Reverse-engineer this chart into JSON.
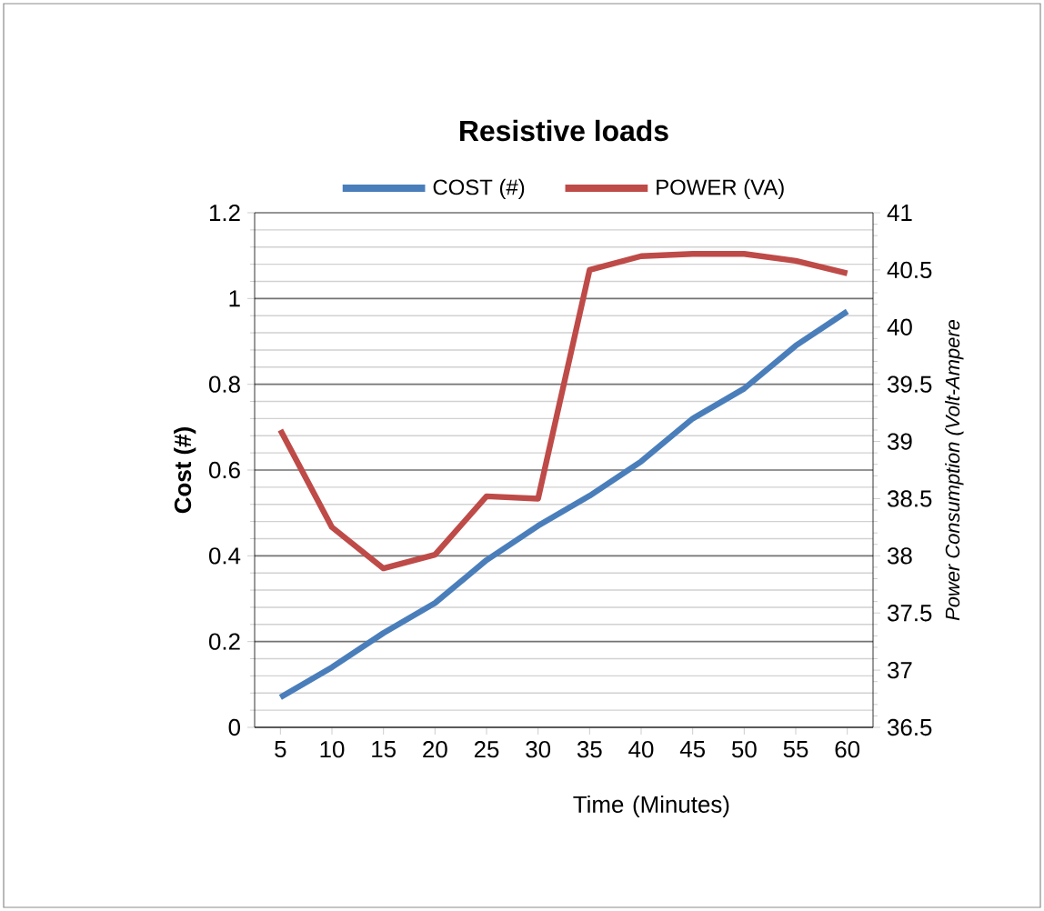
{
  "chart_data": {
    "type": "line",
    "title": "Resistive loads",
    "xlabel": "Time (Minutes)",
    "ylabel": "Cost (#)",
    "y2label": "Power Consumption (Volt-Ampere",
    "categories": [
      "5",
      "10",
      "15",
      "20",
      "25",
      "30",
      "35",
      "40",
      "45",
      "50",
      "55",
      "60"
    ],
    "series": [
      {
        "name": "COST (#)",
        "color": "#4a7ebb",
        "values": [
          0.07,
          0.14,
          0.22,
          0.29,
          0.39,
          0.47,
          0.54,
          0.62,
          0.72,
          0.79,
          0.89,
          0.97
        ]
      },
      {
        "name": "POWER (VA)",
        "color": "#be4b48",
        "axis": "y2",
        "values": [
          39.1,
          38.25,
          37.89,
          38.01,
          38.52,
          38.5,
          40.5,
          40.62,
          40.64,
          40.64,
          40.58,
          40.47
        ]
      }
    ],
    "ylim": [
      0,
      1.2
    ],
    "yticks": [
      0,
      0.2,
      0.4,
      0.6,
      0.8,
      1,
      1.2
    ],
    "y2lim": [
      36.5,
      41
    ],
    "y2ticks": [
      36.5,
      37,
      37.5,
      38,
      38.5,
      39,
      39.5,
      40,
      40.5,
      41
    ],
    "grid": "y",
    "legend": "top",
    "marker": "none",
    "line_style": "solid"
  }
}
